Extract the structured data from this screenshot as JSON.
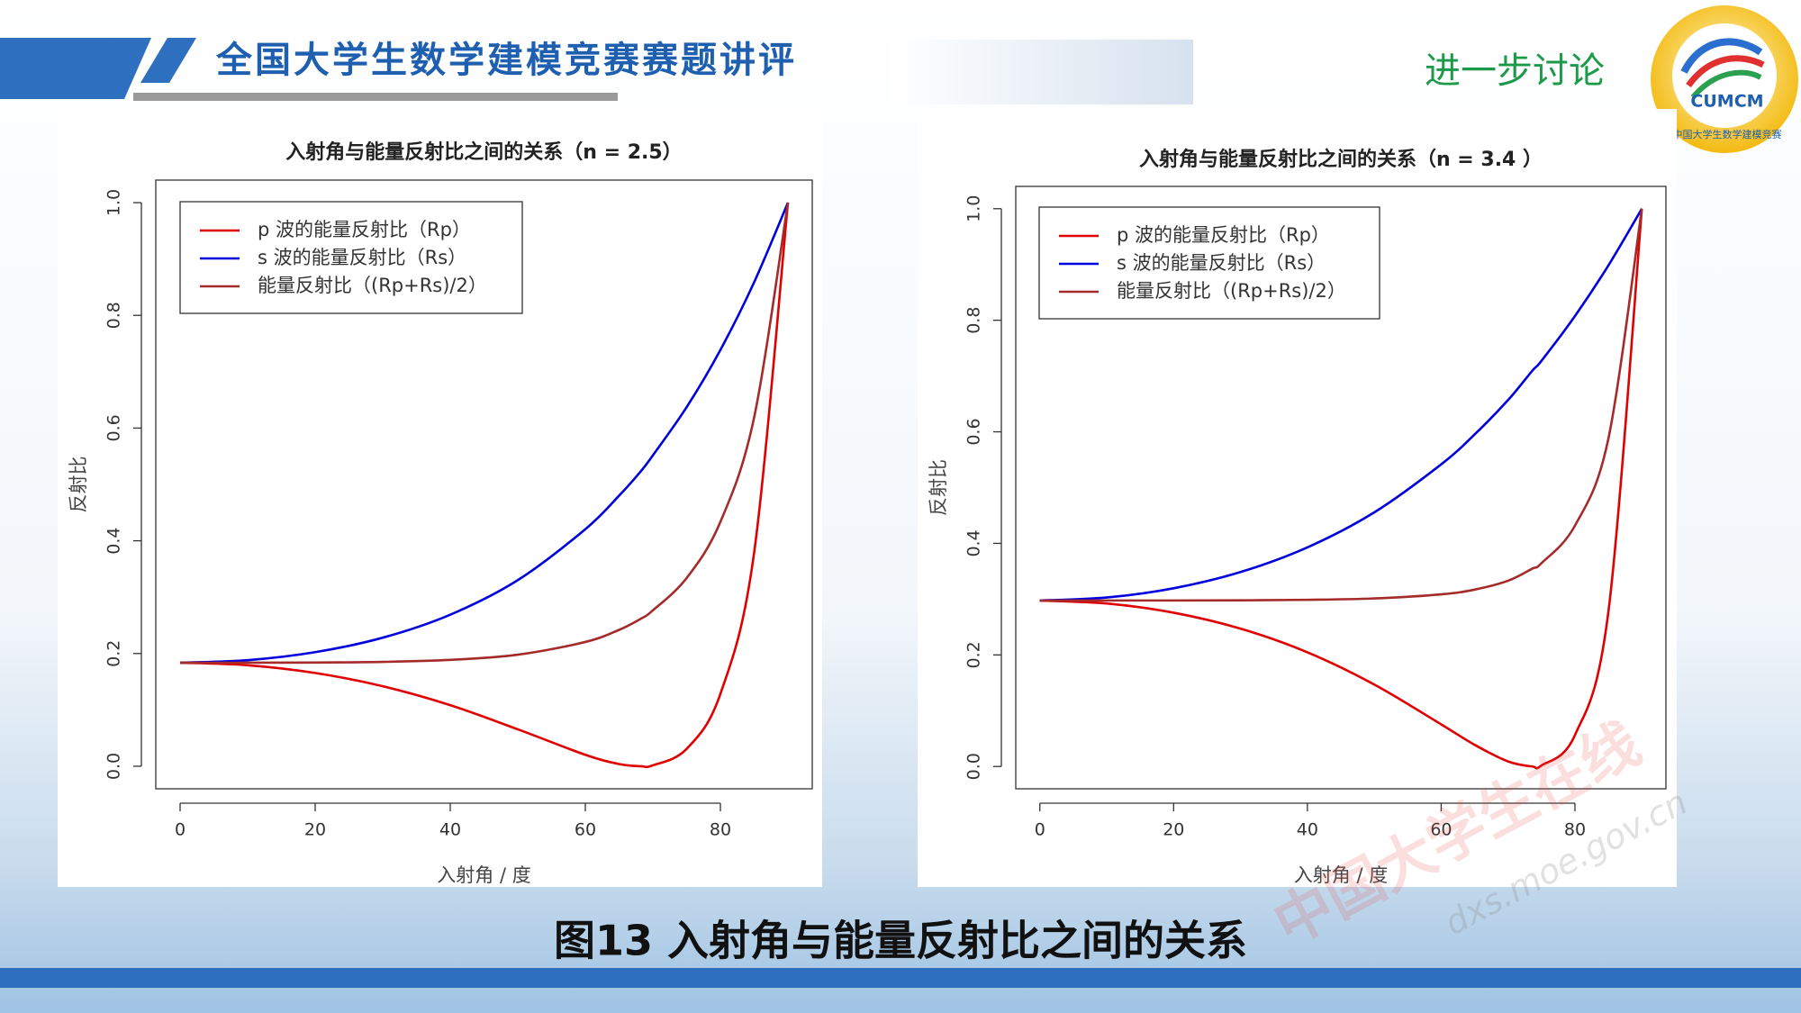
{
  "header": {
    "title": "全国大学生数学建模竞赛赛题讲评",
    "section": "进一步讨论",
    "logo_text": "CUMCM",
    "logo_ring": "中国大学生数学建模竞赛"
  },
  "caption": "图13 入射角与能量反射比之间的关系",
  "watermark": {
    "site": "中国大学生在线",
    "url": "dxs.moe.gov.cn"
  },
  "chart_data": [
    {
      "type": "line",
      "title": "入射角与能量反射比之间的关系（n = 2.5）",
      "x_label": "入射角 / 度",
      "y_label": "反射比",
      "x": [
        0,
        10,
        20,
        30,
        40,
        50,
        60,
        65,
        68.2,
        70,
        75,
        80,
        85,
        90
      ],
      "series": [
        {
          "name": "p 波的能量反射比（Rp）",
          "color": "#e00000",
          "values": [
            0.1837,
            0.1792,
            0.1655,
            0.142,
            0.1084,
            0.0655,
            0.0203,
            0.0039,
            0.0,
            0.0016,
            0.0308,
            0.1285,
            0.3795,
            1.0
          ]
        },
        {
          "name": "s 波的能量反射比（Rs）",
          "color": "#0000dd",
          "values": [
            0.1837,
            0.1882,
            0.2024,
            0.2281,
            0.2689,
            0.3302,
            0.4206,
            0.4801,
            0.5231,
            0.5516,
            0.6371,
            0.7387,
            0.8589,
            1.0
          ]
        },
        {
          "name": "能量反射比（(Rp+Rs)/2）",
          "color": "#a52a2a",
          "values": [
            0.1837,
            0.1837,
            0.184,
            0.1851,
            0.1887,
            0.1979,
            0.2205,
            0.242,
            0.2616,
            0.2766,
            0.334,
            0.4336,
            0.6192,
            1.0
          ]
        }
      ],
      "xlim": [
        -3.6,
        93.6
      ],
      "ylim": [
        -0.04,
        1.04
      ],
      "xticks": [
        0,
        20,
        40,
        60,
        80
      ],
      "yticks": [
        {
          "value": 0,
          "label": "0.0"
        },
        0.2,
        0.4,
        0.6,
        0.8,
        {
          "value": 1,
          "label": "1.0"
        }
      ],
      "legend": "upper left"
    },
    {
      "type": "line",
      "title": "入射角与能量反射比之间的关系（n = 3.4 ）",
      "x_label": "入射角 / 度",
      "y_label": "反射比",
      "x": [
        0,
        10,
        20,
        30,
        40,
        50,
        60,
        65,
        70,
        73.6,
        75,
        80,
        85,
        90
      ],
      "series": [
        {
          "name": "p 波的能量反射比（Rp）",
          "color": "#e00000",
          "values": [
            0.2975,
            0.2922,
            0.2757,
            0.2471,
            0.2047,
            0.1469,
            0.0755,
            0.0388,
            0.009,
            0.0,
            0.0018,
            0.0562,
            0.2775,
            1.0
          ]
        },
        {
          "name": "s 波的能量反射比（Rs）",
          "color": "#0000dd",
          "values": [
            0.2975,
            0.3029,
            0.3195,
            0.3486,
            0.3928,
            0.4556,
            0.5417,
            0.5953,
            0.6569,
            0.7092,
            0.7274,
            0.8076,
            0.8983,
            1.0
          ]
        },
        {
          "name": "能量反射比（(Rp+Rs)/2）",
          "color": "#a52a2a",
          "values": [
            0.2975,
            0.2976,
            0.2976,
            0.2979,
            0.2988,
            0.3013,
            0.3086,
            0.3171,
            0.333,
            0.3546,
            0.3646,
            0.4319,
            0.5879,
            1.0
          ]
        }
      ],
      "xlim": [
        -3.6,
        93.6
      ],
      "ylim": [
        -0.04,
        1.04
      ],
      "xticks": [
        0,
        20,
        40,
        60,
        80
      ],
      "yticks": [
        {
          "value": 0,
          "label": "0.0"
        },
        0.2,
        0.4,
        0.6,
        0.8,
        {
          "value": 1,
          "label": "1.0"
        }
      ],
      "legend": "upper left"
    }
  ]
}
